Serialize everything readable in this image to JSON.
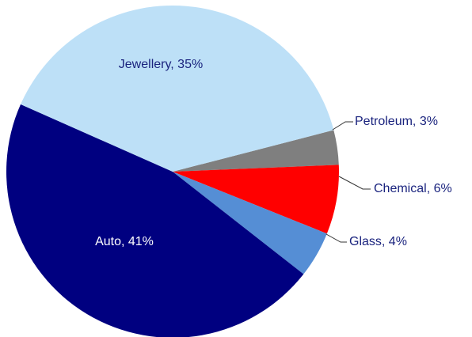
{
  "chart_data": {
    "type": "pie",
    "title": "",
    "start_angle_deg": -14.5,
    "slices": [
      {
        "label": "Petroleum",
        "value": 3,
        "display": "Petroleum, 3%",
        "color": "#7f7f7f",
        "label_color": "#1a237e"
      },
      {
        "label": "Chemical",
        "value": 6,
        "display": "Chemical, 6%",
        "color": "#ff0000",
        "label_color": "#1a237e"
      },
      {
        "label": "Glass",
        "value": 4,
        "display": "Glass, 4%",
        "color": "#558ed5",
        "label_color": "#1a237e"
      },
      {
        "label": "Auto",
        "value": 41,
        "display": "Auto, 41%",
        "color": "#000080",
        "label_color": "#ffffff"
      },
      {
        "label": "Jewellery",
        "value": 35,
        "display": "Jewellery, 35%",
        "color": "#bde0f7",
        "label_color": "#1a237e"
      }
    ]
  }
}
